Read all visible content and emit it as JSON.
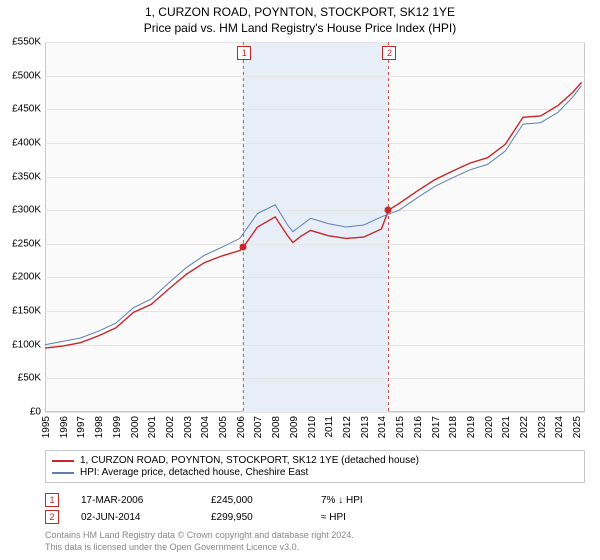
{
  "title_line1": "1, CURZON ROAD, POYNTON, STOCKPORT, SK12 1YE",
  "title_line2": "Price paid vs. HM Land Registry's House Price Index (HPI)",
  "chart": {
    "type": "line",
    "background_color": "#fafafa",
    "grid_color": "#e4e4e4",
    "border_color": "#c8c8c8",
    "shade_color": "#e8eef7",
    "x_range": [
      1995,
      2025.5
    ],
    "y_range": [
      0,
      550
    ],
    "x_ticks": [
      1995,
      1996,
      1997,
      1998,
      1999,
      2000,
      2001,
      2002,
      2003,
      2004,
      2005,
      2006,
      2007,
      2008,
      2009,
      2010,
      2011,
      2012,
      2013,
      2014,
      2015,
      2016,
      2017,
      2018,
      2019,
      2020,
      2021,
      2022,
      2023,
      2024,
      2025
    ],
    "y_ticks": [
      0,
      50,
      100,
      150,
      200,
      250,
      300,
      350,
      400,
      450,
      500,
      550
    ],
    "y_tick_labels": [
      "£0",
      "£50K",
      "£100K",
      "£150K",
      "£200K",
      "£250K",
      "£300K",
      "£350K",
      "£400K",
      "£450K",
      "£500K",
      "£550K"
    ],
    "shade_start": 2006.2,
    "shade_end": 2014.4,
    "series": [
      {
        "label": "1, CURZON ROAD, POYNTON, STOCKPORT, SK12 1YE (detached house)",
        "color": "#c62828",
        "width": 1.4,
        "x": [
          1995,
          1996,
          1997,
          1998,
          1999,
          2000,
          2001,
          2002,
          2003,
          2004,
          2005,
          2006,
          2006.2,
          2007,
          2008,
          2008.7,
          2009,
          2009.5,
          2010,
          2011,
          2012,
          2013,
          2014,
          2014.4,
          2015,
          2016,
          2017,
          2018,
          2019,
          2020,
          2021,
          2022,
          2023,
          2024,
          2024.8,
          2025.3
        ],
        "y": [
          95,
          98,
          103,
          113,
          125,
          148,
          160,
          183,
          205,
          222,
          232,
          240,
          245,
          275,
          290,
          262,
          252,
          262,
          270,
          262,
          258,
          260,
          272,
          300,
          310,
          328,
          345,
          358,
          370,
          378,
          398,
          438,
          440,
          456,
          475,
          490
        ]
      },
      {
        "label": "HPI: Average price, detached house, Cheshire East",
        "color": "#5b7fb5",
        "width": 1.0,
        "x": [
          1995,
          1996,
          1997,
          1998,
          1999,
          2000,
          2001,
          2002,
          2003,
          2004,
          2005,
          2006,
          2007,
          2008,
          2008.7,
          2009,
          2009.5,
          2010,
          2011,
          2012,
          2013,
          2014,
          2015,
          2016,
          2017,
          2018,
          2019,
          2020,
          2021,
          2022,
          2023,
          2024,
          2024.8,
          2025.3
        ],
        "y": [
          100,
          105,
          110,
          120,
          132,
          155,
          168,
          192,
          215,
          233,
          245,
          258,
          295,
          308,
          278,
          268,
          278,
          288,
          280,
          275,
          278,
          290,
          300,
          318,
          335,
          348,
          360,
          368,
          388,
          428,
          430,
          446,
          468,
          485
        ]
      }
    ],
    "sale_points": [
      {
        "x": 2006.2,
        "y": 245,
        "color": "#c62828"
      },
      {
        "x": 2014.4,
        "y": 300,
        "color": "#c62828"
      }
    ],
    "markers": [
      {
        "label": "1",
        "x": 2006.2
      },
      {
        "label": "2",
        "x": 2014.4
      }
    ]
  },
  "legend": {
    "items": [
      {
        "color": "#c62828",
        "label": "1, CURZON ROAD, POYNTON, STOCKPORT, SK12 1YE (detached house)"
      },
      {
        "color": "#5b7fb5",
        "label": "HPI: Average price, detached house, Cheshire East"
      }
    ]
  },
  "sales": [
    {
      "marker": "1",
      "date": "17-MAR-2006",
      "price": "£245,000",
      "delta": "7% ↓ HPI"
    },
    {
      "marker": "2",
      "date": "02-JUN-2014",
      "price": "£299,950",
      "delta": "≈ HPI"
    }
  ],
  "footnote_line1": "Contains HM Land Registry data © Crown copyright and database right 2024.",
  "footnote_line2": "This data is licensed under the Open Government Licence v3.0.",
  "colors": {
    "marker_border": "#c62828",
    "footnote": "#888888"
  }
}
